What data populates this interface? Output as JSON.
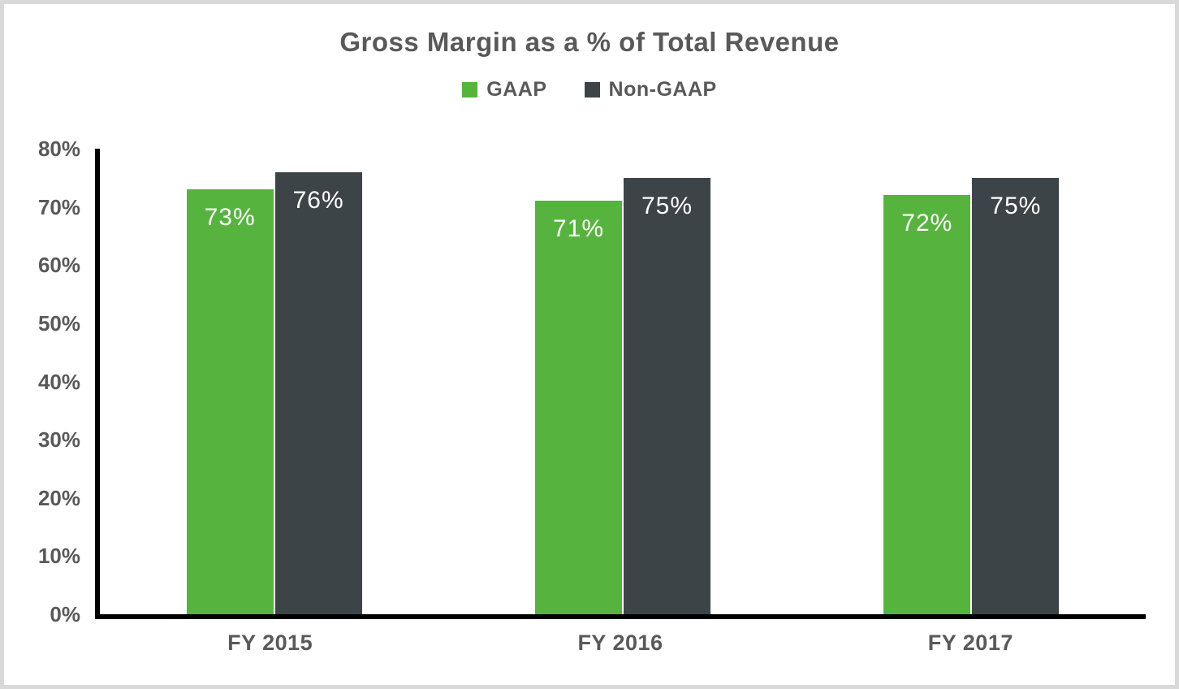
{
  "title": "Gross Margin as a % of Total Revenue",
  "legend": {
    "items": [
      {
        "label": "GAAP",
        "color": "#56b43e"
      },
      {
        "label": "Non-GAAP",
        "color": "#3d4447"
      }
    ]
  },
  "colors": {
    "title_text": "#595959",
    "axis_text": "#595959",
    "axis_line": "#000000",
    "bar_label_text": "#ffffff",
    "gaap_green": "#56b43e",
    "non_gaap_dark": "#3d4447",
    "frame_border": "#d9d9d9",
    "background": "#ffffff"
  },
  "y_axis": {
    "ticks": [
      "0%",
      "10%",
      "20%",
      "30%",
      "40%",
      "50%",
      "60%",
      "70%",
      "80%"
    ],
    "min": 0,
    "max": 80
  },
  "x_axis": {
    "categories": [
      "FY 2015",
      "FY 2016",
      "FY 2017"
    ]
  },
  "chart_data": {
    "type": "bar",
    "title": "Gross Margin as a % of Total Revenue",
    "categories": [
      "FY 2015",
      "FY 2016",
      "FY 2017"
    ],
    "series": [
      {
        "name": "GAAP",
        "color": "#56b43e",
        "values": [
          73,
          71,
          72
        ],
        "data_labels": [
          "73%",
          "71%",
          "72%"
        ]
      },
      {
        "name": "Non-GAAP",
        "color": "#3d4447",
        "values": [
          76,
          75,
          75
        ],
        "data_labels": [
          "76%",
          "75%",
          "75%"
        ]
      }
    ],
    "xlabel": "",
    "ylabel": "",
    "ylim": [
      0,
      80
    ],
    "y_tick_step": 10,
    "grid": false,
    "legend_position": "top",
    "data_label_position": "inside-end"
  }
}
